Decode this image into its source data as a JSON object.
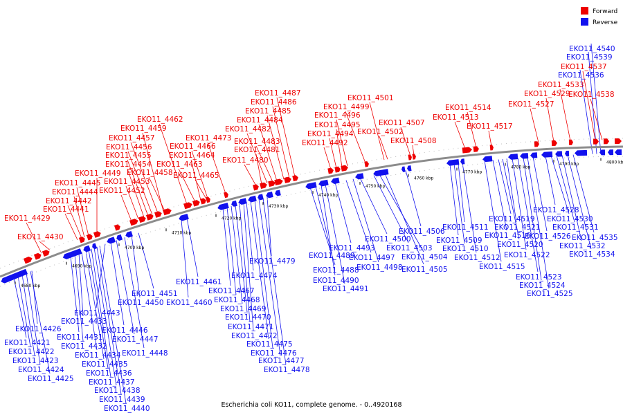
{
  "legend": [
    {
      "label": "Forward",
      "color": "#ee0000"
    },
    {
      "label": "Reverse",
      "color": "#1111ee"
    }
  ],
  "caption": "Escherichia coli KO11, complete genome. - 0..4920168",
  "colors": {
    "forward": "#ee0000",
    "reverse": "#1111ee",
    "backbone": "#8c8c8c"
  },
  "ticks": [
    "4680 kbp",
    "4690 kbp",
    "4700 kbp",
    "4710 kbp",
    "4720 kbp",
    "4730 kbp",
    "4740 kbp",
    "4750 kbp",
    "4760 kbp",
    "4770 kbp",
    "4780 kbp",
    "4790 kbp",
    "4800 kbp"
  ],
  "forward_labels": [
    "EKO11_4429",
    "EKO11_4430",
    "EKO11_4441",
    "EKO11_4442",
    "EKO11_4444",
    "EKO11_4445",
    "EKO11_4449",
    "EKO11_4452",
    "EKO11_4453",
    "EKO11_4454",
    "EKO11_4455",
    "EKO11_4456",
    "EKO11_4457",
    "EKO11_4458",
    "EKO11_4459",
    "EKO11_4462",
    "EKO11_4463",
    "EKO11_4464",
    "EKO11_4465",
    "EKO11_4466",
    "EKO11_4473",
    "EKO11_4480",
    "EKO11_4481",
    "EKO11_4482",
    "EKO11_4483",
    "EKO11_4484",
    "EKO11_4485",
    "EKO11_4486",
    "EKO11_4487",
    "EKO11_4492",
    "EKO11_4494",
    "EKO11_4495",
    "EKO11_4496",
    "EKO11_4499",
    "EKO11_4501",
    "EKO11_4502",
    "EKO11_4507",
    "EKO11_4508",
    "EKO11_4513",
    "EKO11_4514",
    "EKO11_4517",
    "EKO11_4527",
    "EKO11_4529",
    "EKO11_4533",
    "EKO11_4537",
    "EKO11_4538"
  ],
  "reverse_labels": [
    "EKO11_4421",
    "EKO11_4422",
    "EKO11_4423",
    "EKO11_4424",
    "EKO11_4425",
    "EKO11_4426",
    "EKO11_4431",
    "EKO11_4432",
    "EKO11_4433",
    "EKO11_4434",
    "EKO11_4435",
    "EKO11_4436",
    "EKO11_4437",
    "EKO11_4438",
    "EKO11_4439",
    "EKO11_4440",
    "EKO11_4443",
    "EKO11_4446",
    "EKO11_4447",
    "EKO11_4448",
    "EKO11_4450",
    "EKO11_4451",
    "EKO11_4460",
    "EKO11_4461",
    "EKO11_4467",
    "EKO11_4468",
    "EKO11_4469",
    "EKO11_4470",
    "EKO11_4471",
    "EKO11_4472",
    "EKO11_4474",
    "EKO11_4475",
    "EKO11_4476",
    "EKO11_4477",
    "EKO11_4478",
    "EKO11_4479",
    "EKO11_4488",
    "EKO11_4489",
    "EKO11_4490",
    "EKO11_4491",
    "EKO11_4493",
    "EKO11_4497",
    "EKO11_4498",
    "EKO11_4500",
    "EKO11_4503",
    "EKO11_4504",
    "EKO11_4505",
    "EKO11_4506",
    "EKO11_4509",
    "EKO11_4510",
    "EKO11_4511",
    "EKO11_4512",
    "EKO11_4515",
    "EKO11_4516",
    "EKO11_4519",
    "EKO11_4520",
    "EKO11_4521",
    "EKO11_4522",
    "EKO11_4523",
    "EKO11_4524",
    "EKO11_4525",
    "EKO11_4526",
    "EKO11_4528",
    "EKO11_4530",
    "EKO11_4531",
    "EKO11_4532",
    "EKO11_4534",
    "EKO11_4535",
    "EKO11_4536",
    "EKO11_4539",
    "EKO11_4540"
  ]
}
